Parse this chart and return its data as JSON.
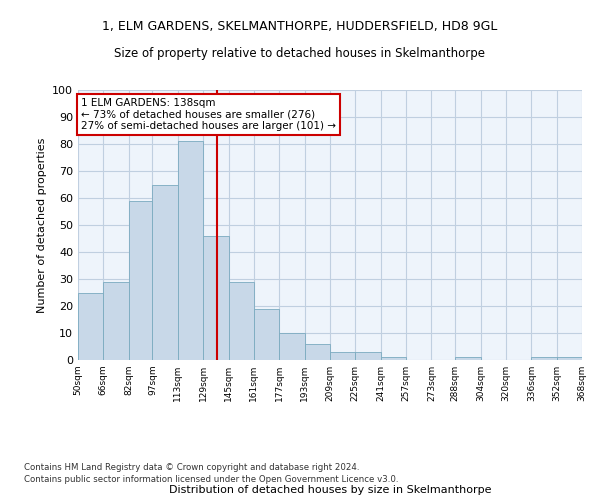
{
  "title_line1": "1, ELM GARDENS, SKELMANTHORPE, HUDDERSFIELD, HD8 9GL",
  "title_line2": "Size of property relative to detached houses in Skelmanthorpe",
  "xlabel": "Distribution of detached houses by size in Skelmanthorpe",
  "ylabel": "Number of detached properties",
  "bar_color": "#c8d8e8",
  "bar_edge_color": "#7aaabf",
  "grid_color": "#c0cfe0",
  "background_color": "#eef4fb",
  "vline_color": "#cc0000",
  "vline_x": 138,
  "bin_edges": [
    50,
    66,
    82,
    97,
    113,
    129,
    145,
    161,
    177,
    193,
    209,
    225,
    241,
    257,
    273,
    288,
    304,
    320,
    336,
    352,
    368
  ],
  "bar_heights": [
    25,
    29,
    59,
    65,
    81,
    46,
    29,
    19,
    10,
    6,
    3,
    3,
    1,
    0,
    0,
    1,
    0,
    0,
    1,
    1
  ],
  "annotation_text": "1 ELM GARDENS: 138sqm\n← 73% of detached houses are smaller (276)\n27% of semi-detached houses are larger (101) →",
  "annotation_box_color": "#ffffff",
  "annotation_box_edge": "#cc0000",
  "footnote1": "Contains HM Land Registry data © Crown copyright and database right 2024.",
  "footnote2": "Contains public sector information licensed under the Open Government Licence v3.0.",
  "ylim": [
    0,
    100
  ],
  "yticks": [
    0,
    10,
    20,
    30,
    40,
    50,
    60,
    70,
    80,
    90,
    100
  ]
}
